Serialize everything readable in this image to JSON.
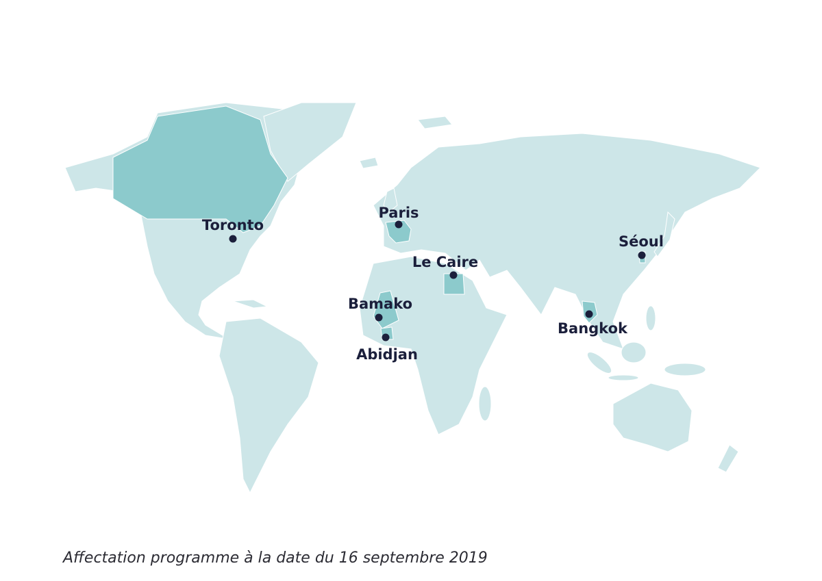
{
  "cities": [
    {
      "label": "Toronto"
    },
    {
      "label": "Paris"
    },
    {
      "label": "Le Caire"
    },
    {
      "label": "Séoul"
    },
    {
      "label": "Bamako"
    },
    {
      "label": "Abidjan"
    },
    {
      "label": "Bangkok"
    }
  ],
  "caption": "Affectation programme à la date du 16 septembre 2019"
}
